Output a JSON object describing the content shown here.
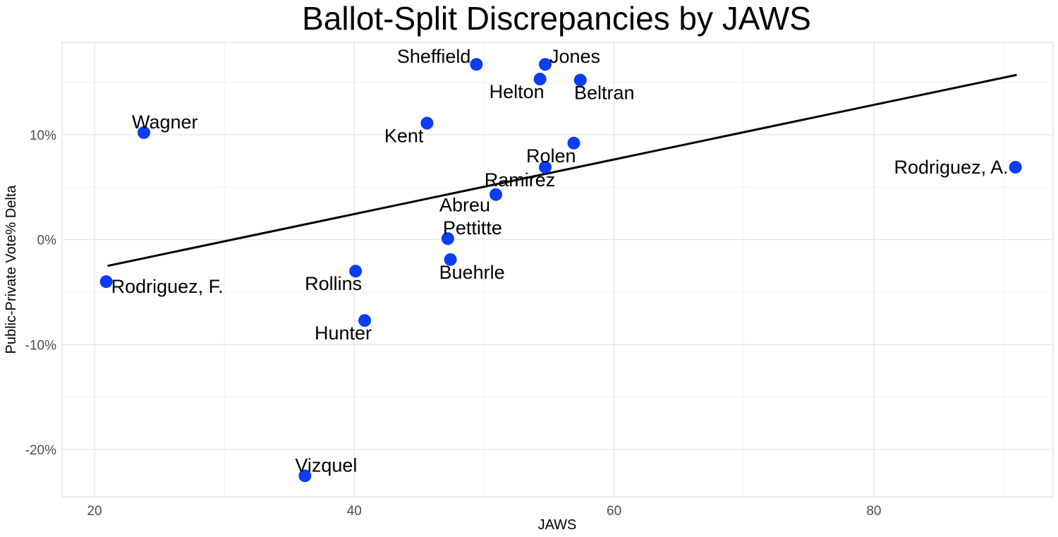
{
  "chart_data": {
    "type": "scatter",
    "title": "Ballot-Split Discrepancies by JAWS",
    "xlabel": "JAWS",
    "ylabel": "Public-Private Vote% Delta",
    "xlim": [
      17.5,
      93.8
    ],
    "ylim": [
      -24.5,
      18.8
    ],
    "x_ticks": [
      20,
      40,
      60,
      80
    ],
    "y_ticks": [
      -20,
      -10,
      0,
      10
    ],
    "y_tick_labels": [
      "-20%",
      "-10%",
      "0%",
      "10%"
    ],
    "grid": true,
    "point_color": "#0d3df2",
    "trend_line": {
      "x": [
        21,
        91
      ],
      "y": [
        -2.5,
        15.7
      ],
      "color": "#000000"
    },
    "points": [
      {
        "name": "Sheffield",
        "x": 49.4,
        "y": 16.7,
        "label_anchor": "end",
        "label_dx": -8,
        "label_dy": -2
      },
      {
        "name": "Jones",
        "x": 54.7,
        "y": 16.7,
        "label_anchor": "start",
        "label_dx": 6,
        "label_dy": -2
      },
      {
        "name": "Helton",
        "x": 54.3,
        "y": 15.3,
        "label_anchor": "end",
        "label_dx": 6,
        "label_dy": 27
      },
      {
        "name": "Beltran",
        "x": 57.4,
        "y": 15.2,
        "label_anchor": "middle",
        "label_dx": 34,
        "label_dy": 27
      },
      {
        "name": "Wagner",
        "x": 23.8,
        "y": 10.2,
        "label_anchor": "start",
        "label_dx": -17,
        "label_dy": -6
      },
      {
        "name": "Kent",
        "x": 45.6,
        "y": 11.1,
        "label_anchor": "end",
        "label_dx": -5,
        "label_dy": 27
      },
      {
        "name": "Rolen",
        "x": 56.9,
        "y": 9.2,
        "label_anchor": "end",
        "label_dx": 3,
        "label_dy": 27
      },
      {
        "name": "Rodriguez, A.",
        "x": 90.9,
        "y": 6.9,
        "label_anchor": "end",
        "label_dx": -10,
        "label_dy": 9
      },
      {
        "name": "Ramirez",
        "x": 54.7,
        "y": 6.9,
        "label_anchor": "middle",
        "label_dx": -36,
        "label_dy": 27
      },
      {
        "name": "Abreu",
        "x": 50.9,
        "y": 4.3,
        "label_anchor": "end",
        "label_dx": -8,
        "label_dy": 24
      },
      {
        "name": "Pettitte",
        "x": 47.2,
        "y": 0.1,
        "label_anchor": "start",
        "label_dx": -7,
        "label_dy": -6
      },
      {
        "name": "Buehrle",
        "x": 47.4,
        "y": -1.9,
        "label_anchor": "start",
        "label_dx": -16,
        "label_dy": 27
      },
      {
        "name": "Rollins",
        "x": 40.1,
        "y": -3.0,
        "label_anchor": "end",
        "label_dx": 9,
        "label_dy": 27
      },
      {
        "name": "Rodriguez, F.",
        "x": 20.9,
        "y": -4.0,
        "label_anchor": "start",
        "label_dx": 7,
        "label_dy": 16
      },
      {
        "name": "Hunter",
        "x": 40.8,
        "y": -7.7,
        "label_anchor": "end",
        "label_dx": 10,
        "label_dy": 27
      },
      {
        "name": "Vizquel",
        "x": 36.2,
        "y": -22.5,
        "label_anchor": "start",
        "label_dx": -14,
        "label_dy": -6
      }
    ]
  }
}
